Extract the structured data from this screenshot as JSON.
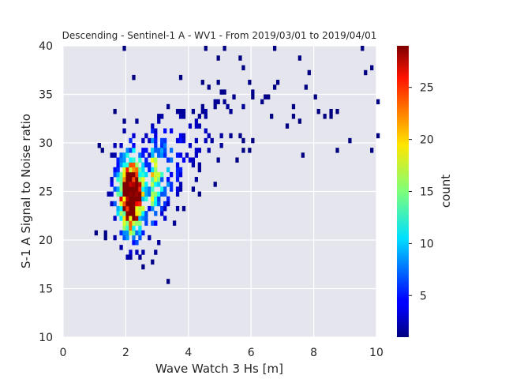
{
  "chart_data": {
    "type": "heatmap",
    "title": "Descending - Sentinel-1 A - WV1 - From 2019/03/01 to 2019/04/01",
    "xlabel": "Wave Watch 3 Hs [m]",
    "ylabel": "S-1 A Signal to Noise ratio",
    "xlim": [
      0,
      10
    ],
    "ylim": [
      10,
      40
    ],
    "xticks": [
      "0",
      "2",
      "4",
      "6",
      "8",
      "10"
    ],
    "yticks": [
      "10",
      "15",
      "20",
      "25",
      "30",
      "35",
      "40"
    ],
    "grid": true,
    "background": "#e5e5ee",
    "colormap": "jet",
    "colorbar": {
      "label": "count",
      "range": [
        1,
        29
      ],
      "ticks": [
        "5",
        "10",
        "15",
        "20",
        "25"
      ]
    },
    "bin_width_x": 0.1,
    "bin_height_y": 0.5,
    "density_model": {
      "peak_count": 29,
      "peak_x": 2.15,
      "peak_y": 24.5,
      "description": "2D histogram counts of collocated points; highest density near Hs 2–2.5 m and SNR 22–30"
    }
  }
}
